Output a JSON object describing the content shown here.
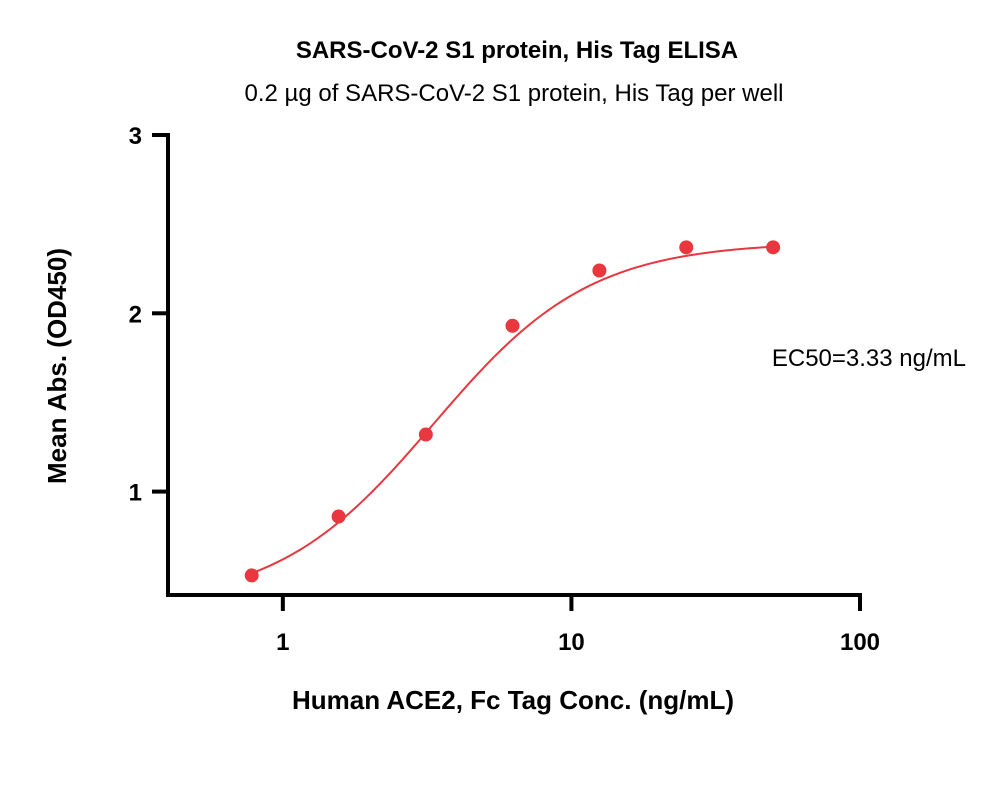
{
  "chart_data": {
    "type": "scatter",
    "title": "SARS-CoV-2 S1 protein, His Tag ELISA",
    "subtitle": "0.2 µg of SARS-CoV-2 S1 protein, His Tag per well",
    "xlabel": "Human ACE2, Fc Tag Conc. (ng/mL)",
    "ylabel": "Mean Abs. (OD450)",
    "x_scale": "log",
    "xlim": [
      0.4,
      100
    ],
    "ylim": [
      0.42,
      3
    ],
    "x_ticks": [
      {
        "value": 1,
        "label": "1"
      },
      {
        "value": 10,
        "label": "10"
      },
      {
        "value": 100,
        "label": "100"
      }
    ],
    "y_ticks": [
      {
        "value": 1,
        "label": "1"
      },
      {
        "value": 2,
        "label": "2"
      },
      {
        "value": 3,
        "label": "3"
      }
    ],
    "series": [
      {
        "color": "#e8373f",
        "x": [
          0.78,
          1.56,
          3.13,
          6.25,
          12.5,
          25,
          50
        ],
        "y": [
          0.53,
          0.86,
          1.32,
          1.93,
          2.24,
          2.37,
          2.37
        ]
      }
    ],
    "fit": {
      "model": "4PL",
      "bottom": 0.36,
      "top": 2.4,
      "ec50": 3.33,
      "hill": 1.6,
      "x_range": [
        0.78,
        50
      ]
    },
    "annotation": "EC50=3.33 ng/mL",
    "grid": false,
    "legend": "none"
  }
}
